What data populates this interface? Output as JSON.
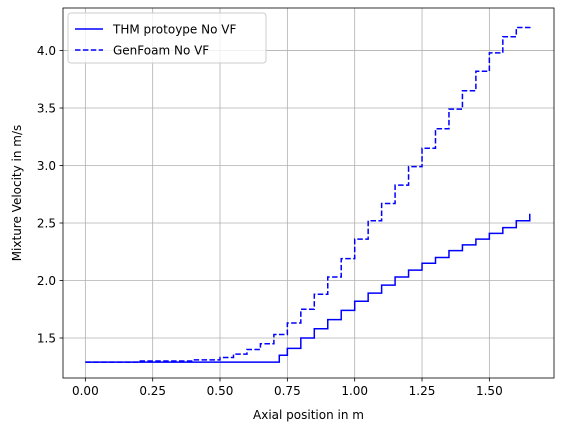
{
  "chart_data": {
    "type": "line",
    "title": "",
    "xlabel": "Axial position in m",
    "ylabel": "Mixture Velocity in m/s",
    "xlim": [
      -0.083,
      1.74
    ],
    "ylim": [
      1.152,
      4.37
    ],
    "xticks": [
      0.0,
      0.25,
      0.5,
      0.75,
      1.0,
      1.25,
      1.5
    ],
    "xtick_labels": [
      "0.00",
      "0.25",
      "0.50",
      "0.75",
      "1.00",
      "1.25",
      "1.50"
    ],
    "yticks": [
      1.5,
      2.0,
      2.5,
      3.0,
      3.5,
      4.0
    ],
    "ytick_labels": [
      "1.5",
      "2.0",
      "2.5",
      "3.0",
      "3.5",
      "4.0"
    ],
    "grid": true,
    "legend_position": "upper-left",
    "series": [
      {
        "name": "THM protoype No VF",
        "color": "#0000ff",
        "linestyle": "solid",
        "drawstyle": "steps",
        "x": [
          0.0,
          0.69,
          0.72,
          0.75,
          0.8,
          0.85,
          0.9,
          0.95,
          1.0,
          1.05,
          1.1,
          1.15,
          1.2,
          1.25,
          1.3,
          1.35,
          1.4,
          1.45,
          1.5,
          1.55,
          1.6,
          1.65
        ],
        "y": [
          1.29,
          1.29,
          1.35,
          1.41,
          1.5,
          1.58,
          1.66,
          1.74,
          1.82,
          1.89,
          1.96,
          2.03,
          2.09,
          2.15,
          2.2,
          2.26,
          2.31,
          2.36,
          2.41,
          2.46,
          2.52,
          2.58
        ]
      },
      {
        "name": "GenFoam No VF",
        "color": "#0000ff",
        "linestyle": "dashed",
        "drawstyle": "steps",
        "x": [
          0.0,
          0.2,
          0.3,
          0.4,
          0.5,
          0.55,
          0.6,
          0.65,
          0.7,
          0.75,
          0.8,
          0.85,
          0.9,
          0.95,
          1.0,
          1.05,
          1.1,
          1.15,
          1.2,
          1.25,
          1.3,
          1.35,
          1.4,
          1.45,
          1.5,
          1.55,
          1.6,
          1.65
        ],
        "y": [
          1.29,
          1.3,
          1.3,
          1.31,
          1.33,
          1.36,
          1.4,
          1.45,
          1.53,
          1.63,
          1.75,
          1.88,
          2.03,
          2.19,
          2.36,
          2.52,
          2.67,
          2.83,
          2.99,
          3.15,
          3.32,
          3.49,
          3.65,
          3.82,
          3.98,
          4.12,
          4.2,
          4.22
        ]
      }
    ]
  }
}
